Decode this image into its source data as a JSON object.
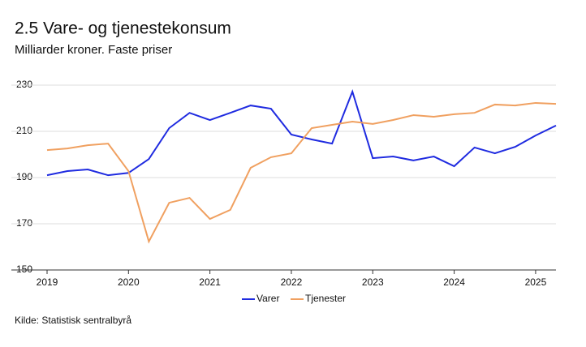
{
  "chart_data": {
    "type": "line",
    "title": "2.5 Vare- og tjenestekonsum",
    "subtitle": "Milliarder kroner. Faste priser",
    "source": "Kilde: Statistisk sentralbyrå",
    "x": [
      2019,
      2019.25,
      2019.5,
      2019.75,
      2020,
      2020.25,
      2020.5,
      2020.75,
      2021,
      2021.25,
      2021.5,
      2021.75,
      2022,
      2022.25,
      2022.5,
      2022.75,
      2023,
      2023.25,
      2023.5,
      2023.75,
      2024,
      2024.25,
      2024.5,
      2024.75,
      2025,
      2025.25
    ],
    "series": [
      {
        "name": "Varer",
        "color": "#1f2be0",
        "values": [
          191.0,
          192.8,
          193.5,
          191.0,
          192.0,
          198.0,
          211.4,
          218.0,
          214.9,
          218.0,
          221.2,
          219.8,
          208.6,
          206.5,
          204.7,
          227.2,
          198.4,
          199.1,
          197.4,
          199.1,
          194.9,
          203.0,
          200.5,
          203.3,
          208.2,
          212.5
        ]
      },
      {
        "name": "Tjenester",
        "color": "#f0a060",
        "values": [
          201.9,
          202.6,
          204.0,
          204.7,
          192.8,
          162.3,
          179.1,
          181.2,
          172.1,
          176.0,
          194.2,
          198.8,
          200.5,
          211.4,
          212.8,
          214.2,
          213.2,
          214.9,
          217.0,
          216.3,
          217.4,
          218.0,
          221.6,
          221.2,
          222.3,
          221.9
        ]
      }
    ],
    "xlim": [
      2019,
      2025.25
    ],
    "xticks": [
      2019,
      2020,
      2021,
      2022,
      2023,
      2024,
      2025
    ],
    "ylim": [
      150,
      230
    ],
    "yticks": [
      150,
      170,
      190,
      210,
      230
    ],
    "grid": true,
    "legend": "bottom"
  }
}
